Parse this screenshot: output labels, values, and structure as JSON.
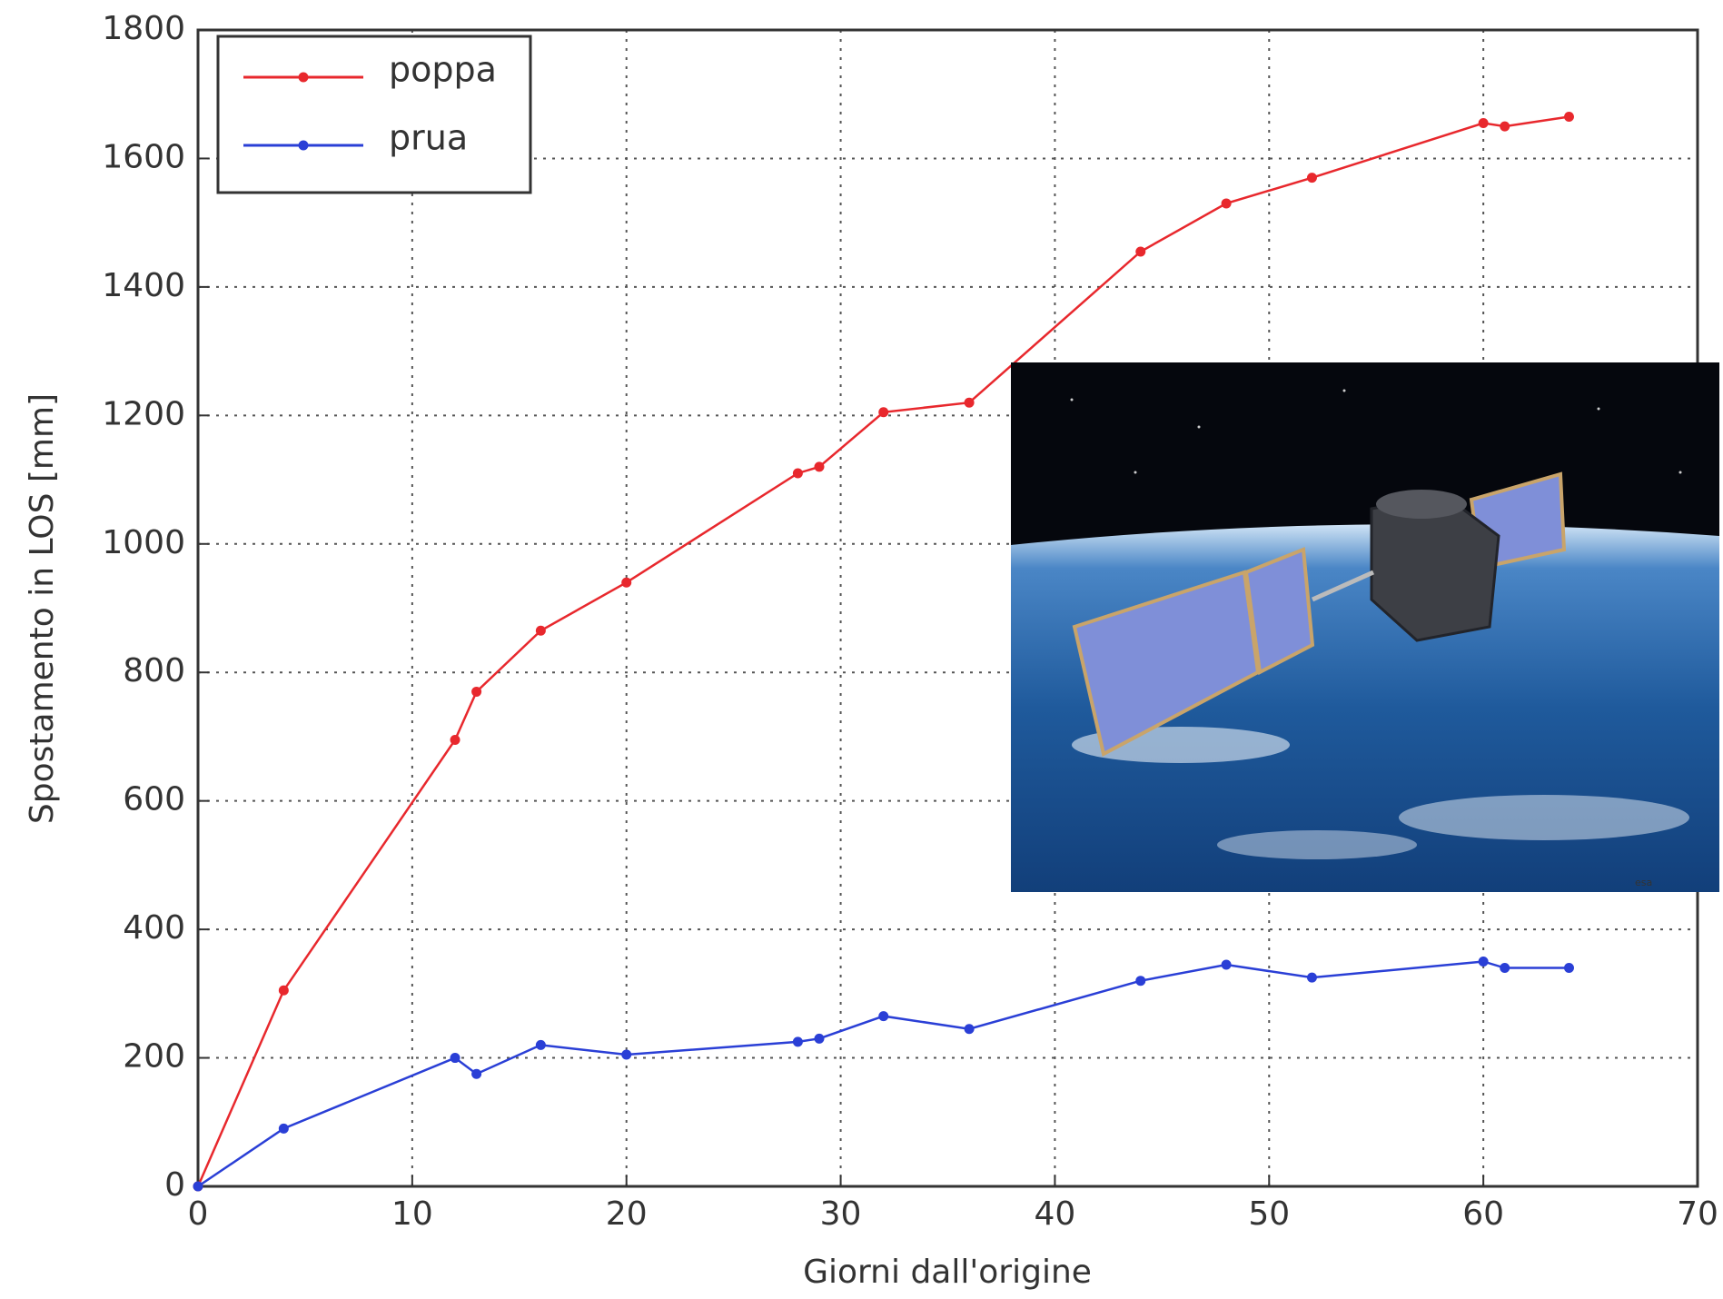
{
  "chart_data": {
    "type": "line",
    "x_label": "Giorni dall'origine",
    "y_label": "Spostamento in LOS [mm]",
    "x": [
      0,
      4,
      12,
      13,
      16,
      20,
      28,
      29,
      32,
      36,
      44,
      48,
      52,
      60,
      61,
      64
    ],
    "series": [
      {
        "name": "poppa",
        "color": "#e8282d",
        "values": [
          0,
          305,
          695,
          770,
          865,
          940,
          1110,
          1120,
          1205,
          1220,
          1455,
          1530,
          1570,
          1655,
          1650,
          1665
        ]
      },
      {
        "name": "prua",
        "color": "#2a3fd6",
        "values": [
          0,
          90,
          200,
          175,
          220,
          205,
          225,
          230,
          265,
          245,
          320,
          345,
          325,
          350,
          340,
          340
        ]
      }
    ],
    "xlim": [
      0,
      70
    ],
    "xticks": [
      0,
      10,
      20,
      30,
      40,
      50,
      60,
      70
    ],
    "ylim": [
      0,
      1800
    ],
    "yticks": [
      0,
      200,
      400,
      600,
      800,
      1000,
      1200,
      1400,
      1600,
      1800
    ],
    "grid": true,
    "legend": "upper left",
    "inset_credit": "esa"
  }
}
